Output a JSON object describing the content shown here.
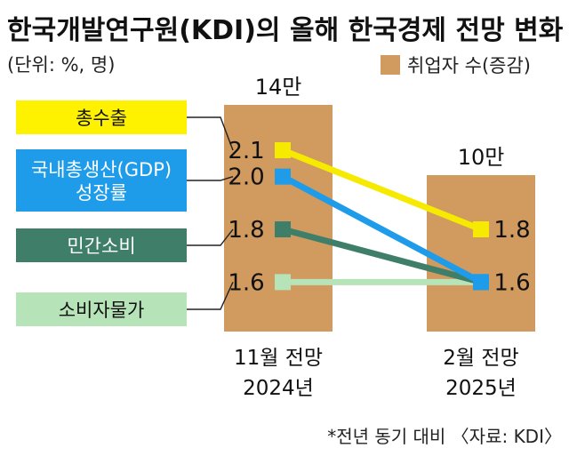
{
  "title": "한국개발연구원(KDI)의 올해 한국경제 전망 변화",
  "unit": "(단위: %, 명)",
  "legend": {
    "label": "취업자 수(증감)",
    "color": "#D19A5E"
  },
  "note": "*전년 동기 대비 〈자료: KDI〉",
  "chart_data": {
    "type": "line",
    "categories": [
      "11월 전망\n2024년",
      "2월 전망\n2025년"
    ],
    "bars": {
      "name": "취업자 수(증감)",
      "values": [
        140000,
        100000
      ],
      "labels": [
        "14만",
        "10만"
      ]
    },
    "series": [
      {
        "name": "총수출",
        "values": [
          2.1,
          1.8
        ],
        "labels": [
          "2.1",
          "1.8"
        ],
        "color": "#F5EA00",
        "label_box": "#FFF200",
        "text_color": "#111111"
      },
      {
        "name": "국내총생산(GDP)\n성장률",
        "values": [
          2.0,
          1.6
        ],
        "labels": [
          "2.0",
          "1.6"
        ],
        "color": "#1E9BE9",
        "label_box": "#1E9BE9",
        "text_color": "#ffffff"
      },
      {
        "name": "민간소비",
        "values": [
          1.8,
          1.6
        ],
        "labels": [
          "1.8",
          "1.6"
        ],
        "color": "#3F7F6A",
        "label_box": "#3F7F6A",
        "text_color": "#ffffff"
      },
      {
        "name": "소비자물가",
        "values": [
          1.6,
          1.6
        ],
        "labels": [
          "1.6",
          "1.6"
        ],
        "color": "#B6E3B7",
        "label_box": "#B6E3B7",
        "text_color": "#111111"
      }
    ],
    "marker_labels_shown": {
      "right": [
        "1.8",
        "1.6"
      ]
    }
  }
}
